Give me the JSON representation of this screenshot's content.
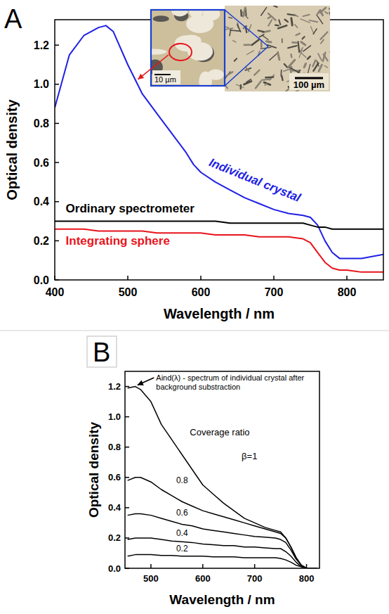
{
  "chart_data": [
    {
      "type": "line",
      "panel_label": "A",
      "x_label": "Wavelength / nm",
      "y_label": "Optical density",
      "xlim": [
        400,
        850
      ],
      "ylim": [
        0,
        1.33
      ],
      "xticks": [
        400,
        500,
        600,
        700,
        800
      ],
      "yticks": [
        {
          "value": 0,
          "label": "0.0"
        },
        0.2,
        0.4,
        0.6,
        0.8,
        {
          "value": 1,
          "label": "1.0"
        },
        1.2
      ],
      "x": [
        400,
        420,
        440,
        460,
        470,
        480,
        500,
        520,
        540,
        560,
        580,
        590,
        600,
        620,
        640,
        660,
        680,
        700,
        720,
        740,
        750,
        760,
        770,
        780,
        790,
        800,
        820,
        850
      ],
      "series": [
        {
          "name": "Individual crystal",
          "color": "#1f1fe6",
          "values": [
            0.88,
            1.15,
            1.25,
            1.29,
            1.3,
            1.27,
            1.1,
            0.95,
            0.85,
            0.75,
            0.65,
            0.59,
            0.55,
            0.5,
            0.46,
            0.42,
            0.39,
            0.36,
            0.34,
            0.33,
            0.32,
            0.28,
            0.2,
            0.14,
            0.11,
            0.11,
            0.11,
            0.13
          ]
        },
        {
          "name": "Ordinary spectrometer",
          "color": "#000000",
          "values": [
            0.3,
            0.3,
            0.3,
            0.3,
            0.3,
            0.3,
            0.3,
            0.3,
            0.3,
            0.3,
            0.3,
            0.3,
            0.3,
            0.3,
            0.29,
            0.29,
            0.29,
            0.29,
            0.29,
            0.29,
            0.28,
            0.27,
            0.27,
            0.26,
            0.26,
            0.26,
            0.26,
            0.26
          ]
        },
        {
          "name": "Integrating sphere",
          "color": "#e8141c",
          "values": [
            0.26,
            0.26,
            0.26,
            0.25,
            0.25,
            0.25,
            0.25,
            0.25,
            0.24,
            0.24,
            0.24,
            0.24,
            0.24,
            0.23,
            0.23,
            0.23,
            0.22,
            0.22,
            0.22,
            0.21,
            0.19,
            0.14,
            0.09,
            0.06,
            0.05,
            0.05,
            0.04,
            0.04
          ]
        }
      ],
      "annotations": [
        "10 µm",
        "100 µm"
      ]
    },
    {
      "type": "line",
      "panel_label": "B",
      "x_label": "Wavelength / nm",
      "y_label": "Optical density",
      "xlim": [
        450,
        825
      ],
      "ylim": [
        0,
        1.3
      ],
      "xticks": [
        500,
        600,
        700,
        800
      ],
      "yticks": [
        {
          "value": 0,
          "label": "0.0"
        },
        0.2,
        0.4,
        0.6,
        0.8,
        {
          "value": 1,
          "label": "1.0"
        },
        1.2
      ],
      "x": [
        455,
        470,
        480,
        500,
        520,
        540,
        560,
        580,
        600,
        620,
        640,
        660,
        680,
        700,
        720,
        740,
        750,
        760,
        770,
        780,
        790,
        800,
        820
      ],
      "series": [
        {
          "name": "β=1",
          "color": "#000000",
          "values": [
            1.19,
            1.2,
            1.18,
            1.1,
            0.95,
            0.85,
            0.75,
            0.65,
            0.55,
            0.49,
            0.43,
            0.38,
            0.33,
            0.3,
            0.27,
            0.25,
            0.24,
            0.2,
            0.14,
            0.07,
            0.02,
            0,
            0
          ]
        },
        {
          "name": "0.8",
          "color": "#000000",
          "values": [
            0.58,
            0.6,
            0.6,
            0.57,
            0.52,
            0.48,
            0.44,
            0.41,
            0.38,
            0.36,
            0.34,
            0.32,
            0.3,
            0.28,
            0.26,
            0.24,
            0.23,
            0.2,
            0.14,
            0.07,
            0.02,
            0,
            0
          ]
        },
        {
          "name": "0.6",
          "color": "#000000",
          "values": [
            0.35,
            0.36,
            0.36,
            0.35,
            0.33,
            0.31,
            0.29,
            0.28,
            0.26,
            0.25,
            0.24,
            0.23,
            0.22,
            0.21,
            0.205,
            0.2,
            0.19,
            0.17,
            0.12,
            0.06,
            0.02,
            0,
            0
          ]
        },
        {
          "name": "0.4",
          "color": "#000000",
          "values": [
            0.19,
            0.2,
            0.2,
            0.2,
            0.19,
            0.18,
            0.175,
            0.17,
            0.16,
            0.155,
            0.15,
            0.15,
            0.14,
            0.14,
            0.135,
            0.13,
            0.13,
            0.11,
            0.08,
            0.04,
            0.01,
            0,
            0
          ]
        },
        {
          "name": "0.2",
          "color": "#000000",
          "values": [
            0.08,
            0.09,
            0.09,
            0.09,
            0.085,
            0.085,
            0.08,
            0.08,
            0.08,
            0.075,
            0.075,
            0.075,
            0.07,
            0.07,
            0.07,
            0.07,
            0.065,
            0.055,
            0.04,
            0.02,
            0.01,
            0,
            0
          ]
        }
      ],
      "annotations": [
        "Aind(λ) - spectrum of individual crystal after background substraction",
        "Coverage ratio"
      ]
    }
  ]
}
